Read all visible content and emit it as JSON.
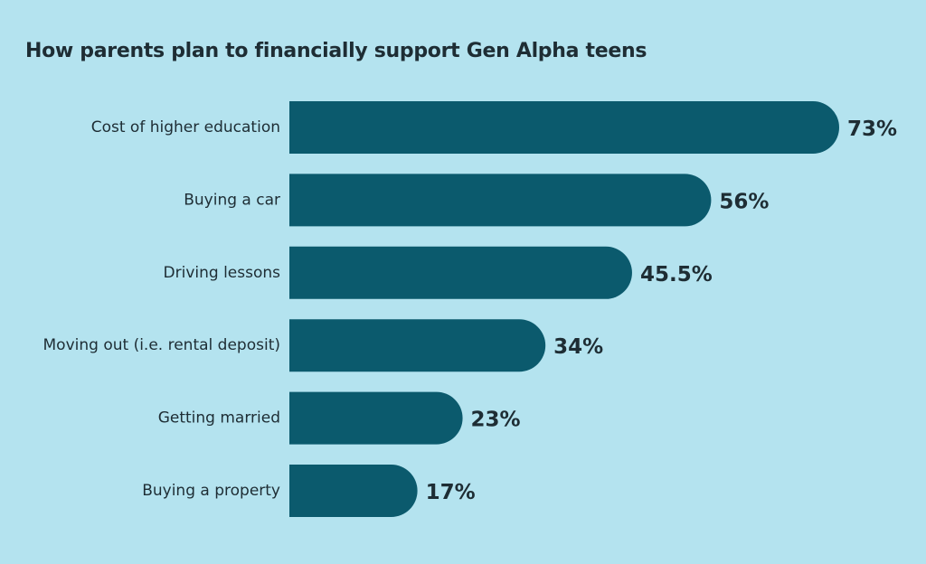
{
  "colors": {
    "background": "#b4e3ef",
    "bar": "#0b5a6d",
    "text": "#1e2d34"
  },
  "chart_data": {
    "type": "bar",
    "orientation": "horizontal",
    "title": "How parents plan to financially support Gen Alpha teens",
    "categories": [
      "Cost of higher education",
      "Buying a car",
      "Driving lessons",
      "Moving out (i.e. rental deposit)",
      "Getting married",
      "Buying a property"
    ],
    "values": [
      73,
      56,
      45.5,
      34,
      23,
      17
    ],
    "value_labels": [
      "73%",
      "56%",
      "45.5%",
      "34%",
      "23%",
      "17%"
    ],
    "xlabel": "",
    "ylabel": "",
    "grid": false,
    "legend": "none"
  }
}
